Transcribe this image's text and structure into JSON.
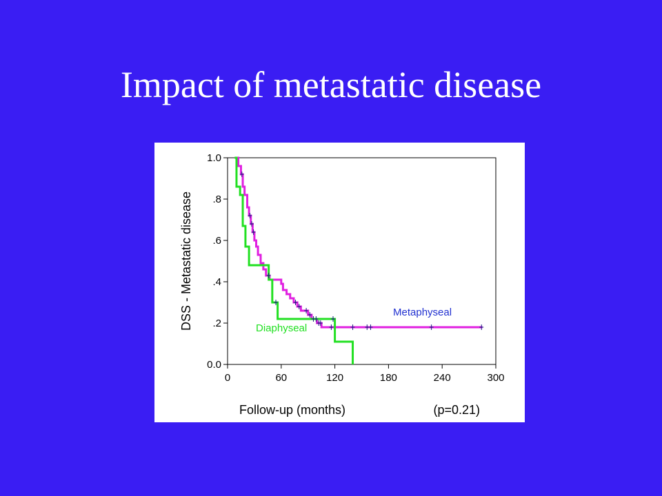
{
  "slide": {
    "title": "Impact of metastatic disease",
    "background": "#3a1df3"
  },
  "chart_data": {
    "type": "line",
    "step": true,
    "xlabel": "Follow-up (months)",
    "ylabel": "DSS - Metastatic disease",
    "pvalue_text": "(p=0.21)",
    "xlim": [
      0,
      300
    ],
    "ylim": [
      0,
      1
    ],
    "x_ticks": [
      0,
      60,
      120,
      180,
      240,
      300
    ],
    "x_tick_labels": [
      "0",
      "60",
      "120",
      "180",
      "240",
      "300"
    ],
    "y_ticks": [
      0,
      0.2,
      0.4,
      0.6,
      0.8,
      1.0
    ],
    "y_tick_labels": [
      "0.0",
      ".2",
      ".4",
      ".6",
      ".8",
      "1.0"
    ],
    "grid": false,
    "series": [
      {
        "name": "Metaphyseal",
        "color": "#e020e0",
        "label_color": "#2030d0",
        "points": [
          [
            8,
            1.0
          ],
          [
            12,
            0.96
          ],
          [
            15,
            0.92
          ],
          [
            17,
            0.86
          ],
          [
            19,
            0.82
          ],
          [
            22,
            0.76
          ],
          [
            24,
            0.72
          ],
          [
            26,
            0.68
          ],
          [
            28,
            0.64
          ],
          [
            30,
            0.6
          ],
          [
            32,
            0.57
          ],
          [
            34,
            0.53
          ],
          [
            37,
            0.49
          ],
          [
            40,
            0.46
          ],
          [
            43,
            0.43
          ],
          [
            47,
            0.41
          ],
          [
            60,
            0.39
          ],
          [
            62,
            0.36
          ],
          [
            66,
            0.34
          ],
          [
            70,
            0.32
          ],
          [
            74,
            0.3
          ],
          [
            78,
            0.28
          ],
          [
            82,
            0.26
          ],
          [
            90,
            0.24
          ],
          [
            94,
            0.22
          ],
          [
            100,
            0.2
          ],
          [
            105,
            0.18
          ],
          [
            285,
            0.18
          ]
        ],
        "censor": [
          16,
          25,
          27,
          29,
          46,
          76,
          80,
          88,
          92,
          96,
          99,
          102,
          104,
          116,
          140,
          156,
          160,
          228,
          284
        ]
      },
      {
        "name": "Diaphyseal",
        "color": "#22e022",
        "label_color": "#22e022",
        "points": [
          [
            8,
            1.0
          ],
          [
            10,
            0.86
          ],
          [
            14,
            0.82
          ],
          [
            17,
            0.67
          ],
          [
            20,
            0.57
          ],
          [
            24,
            0.48
          ],
          [
            46,
            0.41
          ],
          [
            50,
            0.3
          ],
          [
            56,
            0.22
          ],
          [
            120,
            0.11
          ],
          [
            140,
            0.0
          ]
        ],
        "censor": [
          54,
          118
        ]
      }
    ]
  }
}
